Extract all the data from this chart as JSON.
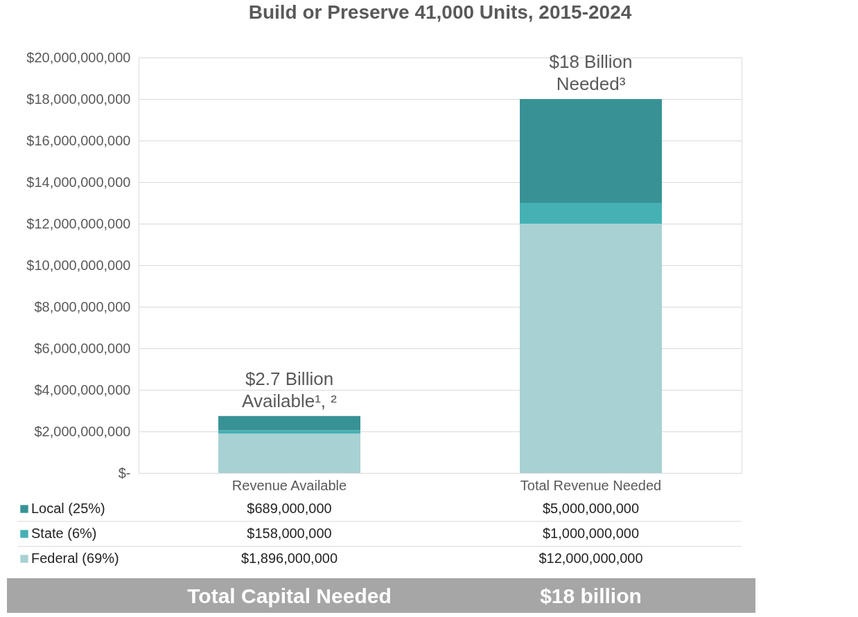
{
  "chart_data": {
    "type": "bar",
    "title": "Build or Preserve 41,000 Units, 2015-2024",
    "stacked": true,
    "legend": "bottom",
    "grid": "y",
    "data_labels": false,
    "categories": [
      "Revenue Available",
      "Total Revenue Needed"
    ],
    "series": [
      {
        "name": "Federal (69%)",
        "color": "#a8d1d3",
        "values": [
          1896000000,
          12000000000
        ],
        "value_labels": [
          "$1,896,000,000",
          "$12,000,000,000"
        ]
      },
      {
        "name": "State (6%)",
        "color": "#45b1b5",
        "values": [
          158000000,
          1000000000
        ],
        "value_labels": [
          "$158,000,000",
          "$1,000,000,000"
        ]
      },
      {
        "name": "Local (25%)",
        "color": "#389295",
        "values": [
          689000000,
          5000000000
        ],
        "value_labels": [
          "$689,000,000",
          "$5,000,000,000"
        ]
      }
    ],
    "ylim": [
      0,
      20000000000
    ],
    "yticks": [
      {
        "value": 0,
        "label": "$-"
      },
      {
        "value": 2000000000,
        "label": "$2,000,000,000"
      },
      {
        "value": 4000000000,
        "label": "$4,000,000,000"
      },
      {
        "value": 6000000000,
        "label": "$6,000,000,000"
      },
      {
        "value": 8000000000,
        "label": "$8,000,000,000"
      },
      {
        "value": 10000000000,
        "label": "$10,000,000,000"
      },
      {
        "value": 12000000000,
        "label": "$12,000,000,000"
      },
      {
        "value": 14000000000,
        "label": "$14,000,000,000"
      },
      {
        "value": 16000000000,
        "label": "$16,000,000,000"
      },
      {
        "value": 18000000000,
        "label": "$18,000,000,000"
      },
      {
        "value": 20000000000,
        "label": "$20,000,000,000"
      }
    ],
    "annotations": [
      {
        "text": "$2.7 Billion\nAvailable¹, ²",
        "x": "Revenue Available",
        "y": 2743000000
      },
      {
        "text": "$18 Billion\nNeeded³",
        "x": "Total Revenue Needed",
        "y": 18000000000
      },
      "Total Capital Needed",
      "$18 billion"
    ]
  }
}
